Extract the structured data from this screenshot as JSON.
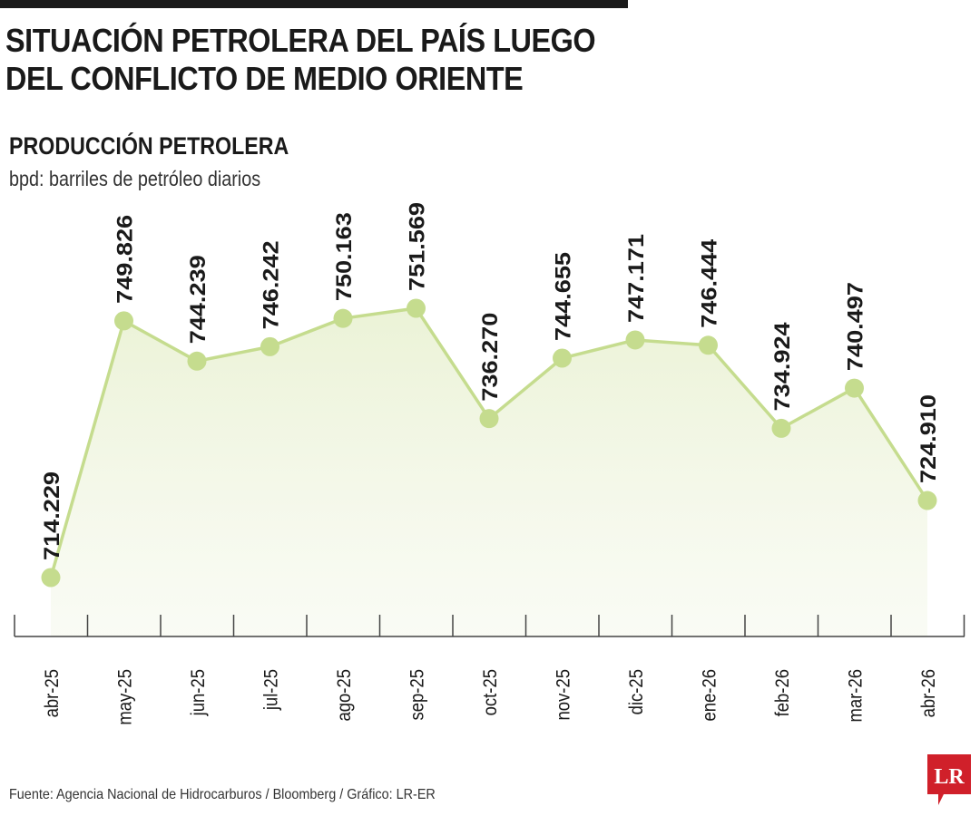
{
  "header": {
    "title_line1": "SITUACIÓN PETROLERA DEL PAÍS LUEGO",
    "title_line2": "DEL CONFLICTO DE MEDIO ORIENTE"
  },
  "chart_data": {
    "type": "area",
    "title": "PRODUCCIÓN PETROLERA",
    "subtitle": "bpd: barriles de petróleo diarios",
    "categories": [
      "abr-25",
      "may-25",
      "jun-25",
      "jul-25",
      "ago-25",
      "sep-25",
      "oct-25",
      "nov-25",
      "dic-25",
      "ene-26",
      "feb-26",
      "mar-26",
      "abr-26"
    ],
    "values": [
      714229,
      749826,
      744239,
      746242,
      750163,
      751569,
      736270,
      744655,
      747171,
      746444,
      734924,
      740497,
      724910
    ],
    "value_labels": [
      "714.229",
      "749.826",
      "744.239",
      "746.242",
      "750.163",
      "751.569",
      "736.270",
      "744.655",
      "747.171",
      "746.444",
      "734.924",
      "740.497",
      "724.910"
    ],
    "grid": false,
    "legend": "none",
    "colors": {
      "line": "#c5dc8e",
      "marker": "#c5dc8e",
      "fill": "#eef4dc",
      "text": "#1a1a1a"
    }
  },
  "footer": {
    "source": "Fuente: Agencia Nacional de Hidrocarburos / Bloomberg / Gráfico: LR-ER",
    "logo_text": "LR",
    "logo_color": "#d0202a"
  }
}
